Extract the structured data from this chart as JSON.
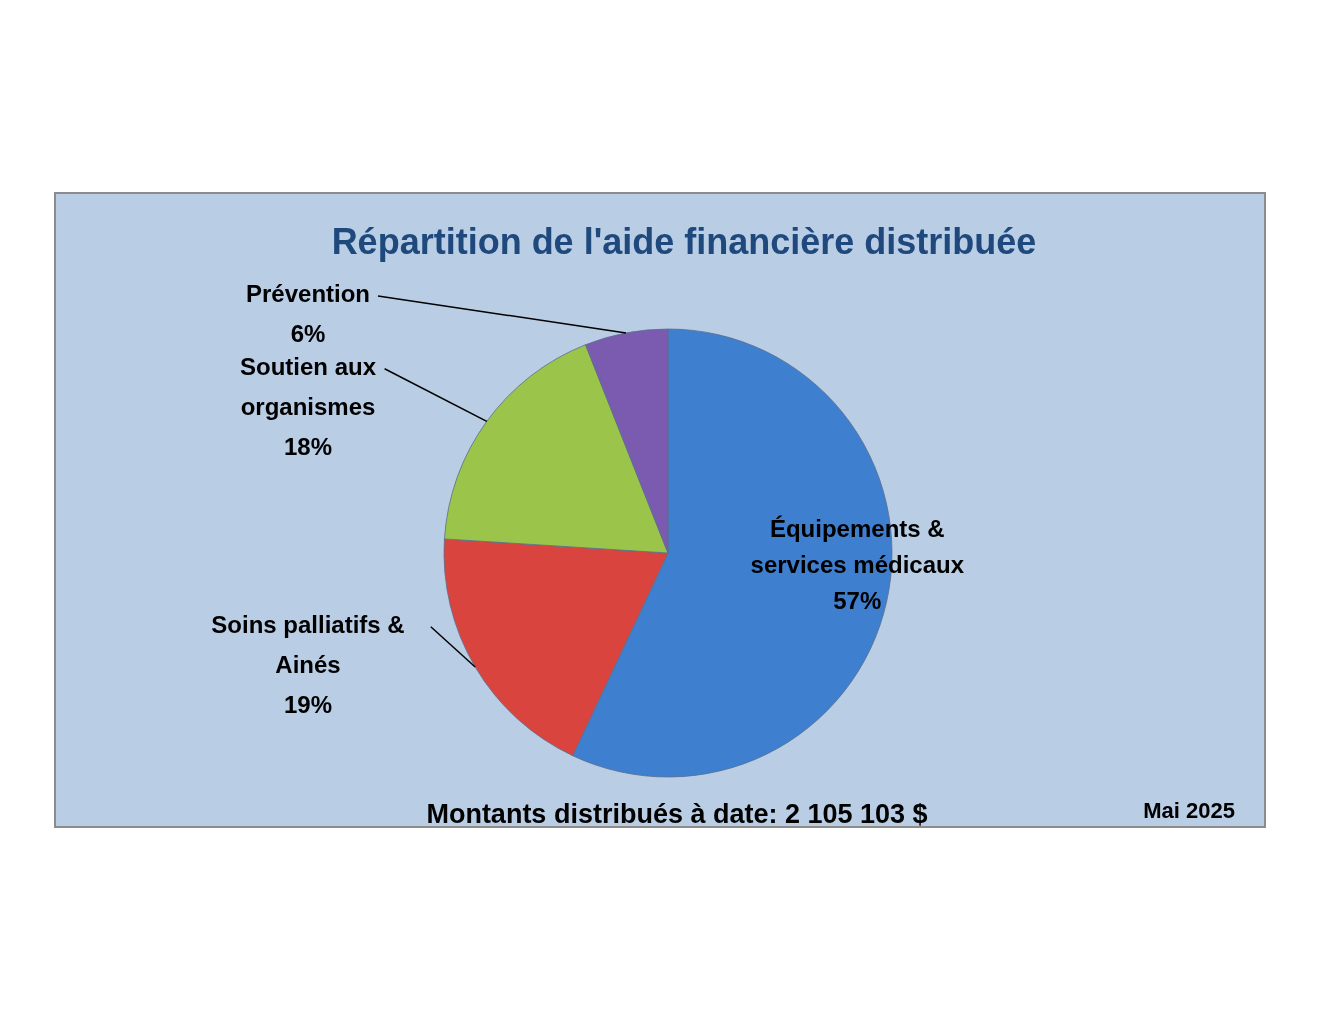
{
  "chart_data": {
    "type": "pie",
    "title": "Répartition de l'aide financière distribuée",
    "categories": [
      "Équipements & services médicaux",
      "Soins palliatifs & Ainés",
      "Soutien aux organismes",
      "Prévention"
    ],
    "values": [
      57,
      19,
      18,
      6
    ],
    "colors": [
      "#3f7fd0",
      "#d9443f",
      "#9bc44a",
      "#7b5bb0"
    ],
    "value_labels": [
      "57%",
      "19%",
      "18%",
      "6%"
    ],
    "legend": false,
    "annotations": [
      "Montants distribués à date: 2 105 103 $",
      "Mai 2025"
    ]
  }
}
